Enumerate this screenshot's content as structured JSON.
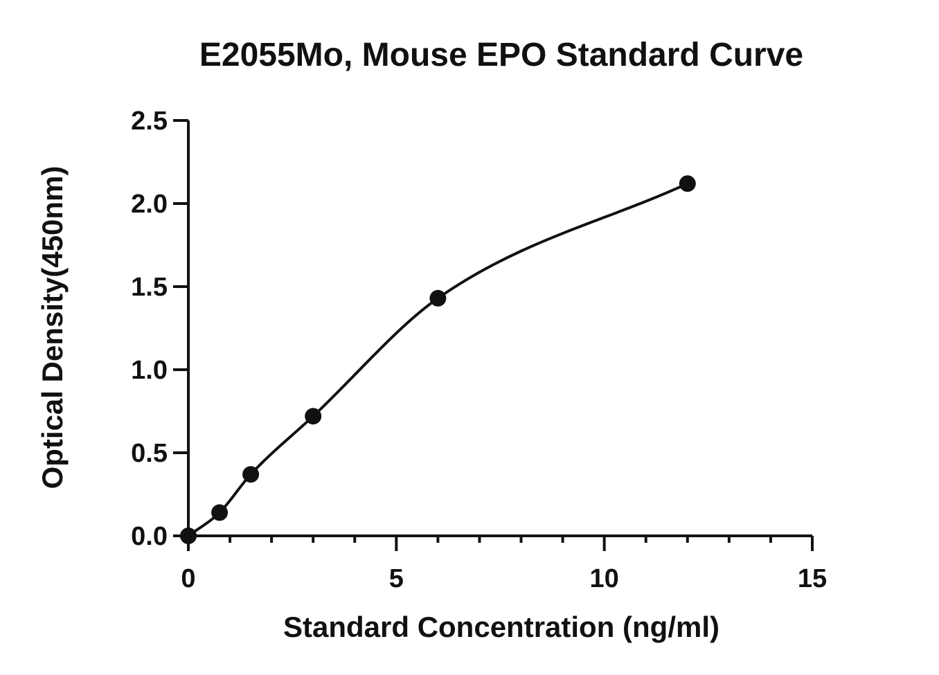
{
  "chart_data": {
    "type": "scatter",
    "title": "E2055Mo, Mouse EPO Standard Curve",
    "xlabel": "Standard Concentration (ng/ml)",
    "ylabel": "Optical Density(450nm)",
    "xlim": [
      0,
      15
    ],
    "ylim": [
      0,
      2.5
    ],
    "x_major_ticks": [
      0,
      5,
      10,
      15
    ],
    "x_tick_labels": [
      "0",
      "5",
      "10",
      "15"
    ],
    "x_minor_step": 1,
    "y_major_ticks": [
      0,
      0.5,
      1.0,
      1.5,
      2.0,
      2.5
    ],
    "y_tick_labels": [
      "0.0",
      "0.5",
      "1.0",
      "1.5",
      "2.0",
      "2.5"
    ],
    "grid": false,
    "legend": "none",
    "series": [
      {
        "x": [
          0,
          0.75,
          1.5,
          3,
          6,
          12
        ],
        "y": [
          0.0,
          0.14,
          0.37,
          0.72,
          1.43,
          2.12
        ]
      }
    ],
    "fit_curve": "smooth line through points",
    "color": "#111111"
  }
}
